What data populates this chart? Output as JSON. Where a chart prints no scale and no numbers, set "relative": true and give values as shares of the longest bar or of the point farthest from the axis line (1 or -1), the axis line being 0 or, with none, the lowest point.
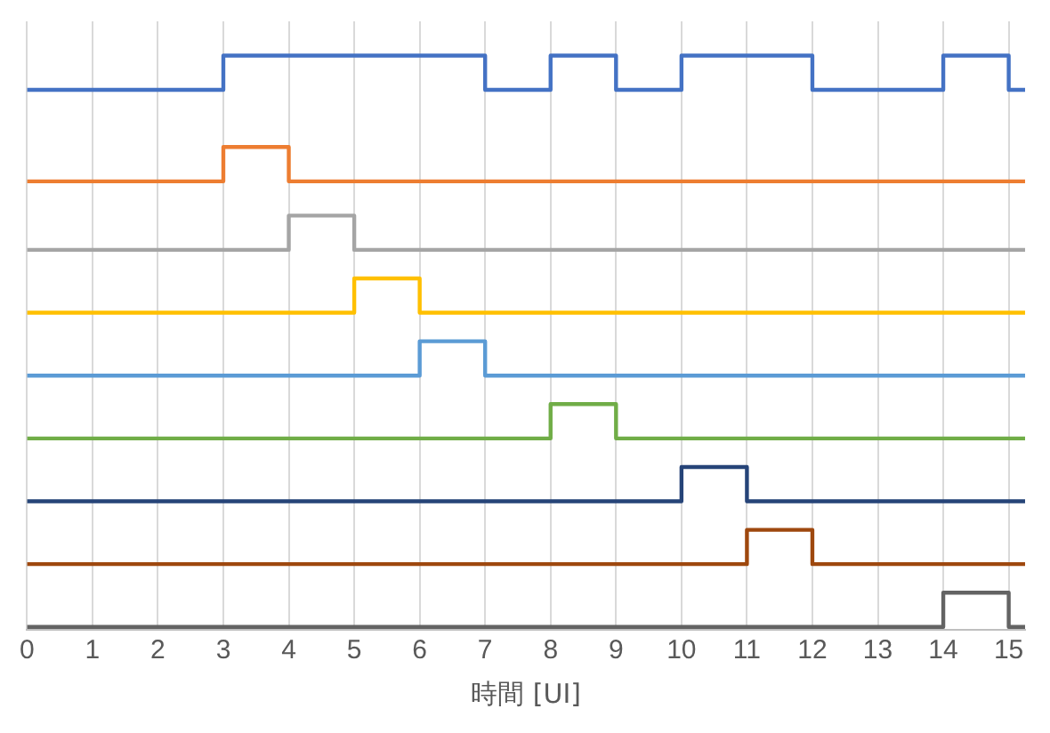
{
  "chart_data": {
    "type": "step",
    "relative": true,
    "xlabel": "時間 [UI]",
    "xlim": [
      0,
      15.25
    ],
    "xticks": [
      0,
      1,
      2,
      3,
      4,
      5,
      6,
      7,
      8,
      9,
      10,
      11,
      12,
      13,
      14,
      15
    ],
    "grid": "x",
    "legend": false,
    "marker": "none",
    "line_style": "solid",
    "x": [
      0,
      1,
      2,
      3,
      4,
      5,
      6,
      7,
      8,
      9,
      10,
      11,
      12,
      13,
      14,
      15,
      15.25
    ],
    "series": [
      {
        "color": "#4472c4",
        "values": [
          0.94,
          0.94,
          0.94,
          1,
          1,
          1,
          1,
          0.94,
          1,
          0.94,
          1,
          1,
          0.94,
          0.94,
          1,
          0.94,
          0.94
        ]
      },
      {
        "color": "#ed7d31",
        "values": [
          0.78,
          0.78,
          0.78,
          0.84,
          0.78,
          0.78,
          0.78,
          0.78,
          0.78,
          0.78,
          0.78,
          0.78,
          0.78,
          0.78,
          0.78,
          0.78,
          0.78
        ]
      },
      {
        "color": "#a5a5a5",
        "values": [
          0.66,
          0.66,
          0.66,
          0.66,
          0.72,
          0.66,
          0.66,
          0.66,
          0.66,
          0.66,
          0.66,
          0.66,
          0.66,
          0.66,
          0.66,
          0.66,
          0.66
        ]
      },
      {
        "color": "#ffc000",
        "values": [
          0.55,
          0.55,
          0.55,
          0.55,
          0.55,
          0.61,
          0.55,
          0.55,
          0.55,
          0.55,
          0.55,
          0.55,
          0.55,
          0.55,
          0.55,
          0.55,
          0.55
        ]
      },
      {
        "color": "#5b9bd5",
        "values": [
          0.44,
          0.44,
          0.44,
          0.44,
          0.44,
          0.44,
          0.5,
          0.44,
          0.44,
          0.44,
          0.44,
          0.44,
          0.44,
          0.44,
          0.44,
          0.44,
          0.44
        ]
      },
      {
        "color": "#70ad47",
        "values": [
          0.33,
          0.33,
          0.33,
          0.33,
          0.33,
          0.33,
          0.33,
          0.33,
          0.39,
          0.33,
          0.33,
          0.33,
          0.33,
          0.33,
          0.33,
          0.33,
          0.33
        ]
      },
      {
        "color": "#264478",
        "values": [
          0.22,
          0.22,
          0.22,
          0.22,
          0.22,
          0.22,
          0.22,
          0.22,
          0.22,
          0.22,
          0.28,
          0.22,
          0.22,
          0.22,
          0.22,
          0.22,
          0.22
        ]
      },
      {
        "color": "#9e480e",
        "values": [
          0.11,
          0.11,
          0.11,
          0.11,
          0.11,
          0.11,
          0.11,
          0.11,
          0.11,
          0.11,
          0.11,
          0.17,
          0.11,
          0.11,
          0.11,
          0.11,
          0.11
        ]
      },
      {
        "color": "#636363",
        "values": [
          0,
          0,
          0,
          0,
          0,
          0,
          0,
          0,
          0,
          0,
          0,
          0,
          0,
          0,
          0.06,
          0,
          0
        ]
      }
    ]
  }
}
